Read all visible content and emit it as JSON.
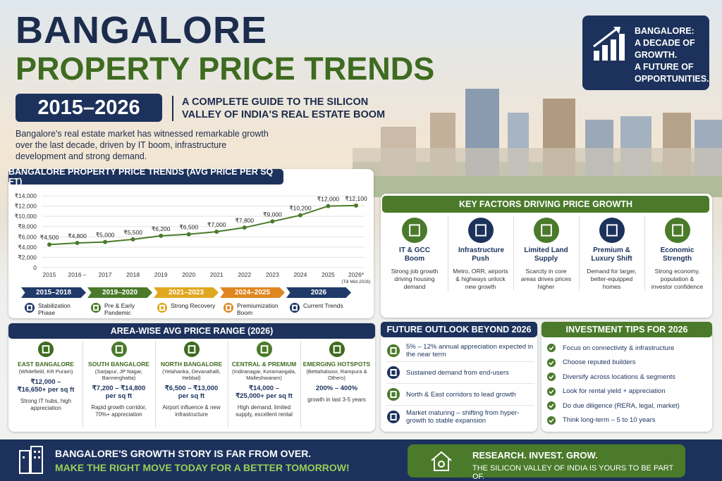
{
  "header": {
    "title_line1": "BANGALORE",
    "title_line2": "PROPERTY PRICE TRENDS",
    "years": "2015–2026",
    "subtitle_lines": [
      "A COMPLETE GUIDE TO THE SILICON",
      "VALLEY OF INDIA'S REAL ESTATE BOOM"
    ],
    "intro": "Bangalore's real estate market has witnessed remarkable growth over the last decade, driven by IT boom, infrastructure development and strong demand."
  },
  "badge": {
    "lines": [
      "BANGALORE:",
      "A DECADE OF GROWTH.",
      "A FUTURE OF",
      "OPPORTUNITIES."
    ]
  },
  "chart_data": {
    "type": "line",
    "title": "BANGALORE PROPERTY PRICE TRENDS (AVG PRICE PER SQ FT)",
    "categories": [
      "2015",
      "2016 –",
      "2017",
      "2018",
      "2019",
      "2020",
      "2021",
      "2022",
      "2023",
      "2024",
      "2025",
      "2026*"
    ],
    "x_note": "(Till Mid-2026)",
    "values": [
      4500,
      4800,
      5000,
      5500,
      6200,
      6500,
      7000,
      7800,
      9000,
      10200,
      12000,
      12100
    ],
    "value_labels": [
      "₹4,500",
      "₹4,800",
      "₹5,000",
      "₹5,500",
      "₹6,200",
      "₹6,500",
      "₹7,000",
      "₹7,800",
      "₹9,000",
      "₹10,200",
      "₹12,000",
      "₹12,100"
    ],
    "color": "#4a7a2a",
    "ylim": [
      0,
      14000
    ],
    "yticks": [
      0,
      {
        "value": 2000,
        "label": "₹2,000"
      },
      {
        "value": 4000,
        "label": "₹4,000"
      },
      {
        "value": 6000,
        "label": "₹6,000"
      },
      {
        "value": 8000,
        "label": "₹8,000"
      },
      {
        "value": 10000,
        "label": "₹10,000"
      },
      {
        "value": 12000,
        "label": "₹12,000"
      },
      {
        "value": 14000,
        "label": "₹14,000"
      }
    ],
    "grid": true
  },
  "phases": [
    {
      "range": "2015–2018",
      "label": "Stabilization Phase",
      "color": "#1f3a68"
    },
    {
      "range": "2019–2020",
      "label": "Pre & Early Pandemic",
      "color": "#4a7a2a"
    },
    {
      "range": "2021–2023",
      "label": "Strong Recovery",
      "color": "#e0a820"
    },
    {
      "range": "2024–2025",
      "label": "Premiumization Boom",
      "color": "#e0861f"
    },
    {
      "range": "2026",
      "label": "Current Trends",
      "color": "#1f3a68"
    }
  ],
  "key_factors": {
    "title": "KEY FACTORS DRIVING PRICE GROWTH",
    "items": [
      {
        "title": "IT & GCC Boom",
        "desc": "Strong job growth driving housing demand"
      },
      {
        "title": "Infrastructure Push",
        "desc": "Metro, ORR, airports & highways unlock new growth"
      },
      {
        "title": "Limited Land Supply",
        "desc": "Scarcity in core areas drives prices higher"
      },
      {
        "title": "Premium & Luxury Shift",
        "desc": "Demand for larger, better-equipped homes"
      },
      {
        "title": "Economic Strength",
        "desc": "Strong economy, population & investor confidence"
      }
    ]
  },
  "areas": {
    "title": "AREA-WISE AVG PRICE RANGE (2026)",
    "items": [
      {
        "name": "EAST BANGALORE",
        "sub": "(Whitefield, KR Puram)",
        "price": "₹12,000 – ₹16,650+ per sq ft",
        "note": "Strong IT hubs, high appreciation"
      },
      {
        "name": "SOUTH BANGALORE",
        "sub": "(Sarjapur, JP Nagar, Bannerghatta)",
        "price": "₹7,200 – ₹14,800 per sq ft",
        "note": "Rapid growth corridor, 70%+ appreciation"
      },
      {
        "name": "NORTH BANGALORE",
        "sub": "(Yelahanka, Devanahalli, Hebbal)",
        "price": "₹6,500 – ₹13,000 per sq ft",
        "note": "Airport influence & new infrastructure"
      },
      {
        "name": "CENTRAL & PREMIUM",
        "sub": "(Indiranagar, Koramangala, Malleshwaram)",
        "price": "₹14,000 – ₹25,000+ per sq ft",
        "note": "High demand, limited supply, excellent rental"
      },
      {
        "name": "EMERGING HOTSPOTS",
        "sub": "(Bettahalsoor, Rampura & Others)",
        "price": "200% – 400%",
        "note": "growth in last 3-5 years"
      }
    ]
  },
  "outlook": {
    "title": "FUTURE OUTLOOK BEYOND 2026",
    "items": [
      "5% – 12% annual appreciation expected in the near term",
      "Sustained demand from end-users",
      "North & East corridors to lead growth",
      "Market maturing – shifting from hyper-growth to stable expansion"
    ]
  },
  "tips": {
    "title": "INVESTMENT TIPS FOR 2026",
    "items": [
      "Focus on connectivity & infrastructure",
      "Choose reputed builders",
      "Diversify across locations & segments",
      "Look for rental yield + appreciation",
      "Do due diligence (RERA, legal, market)",
      "Think long-term – 5 to 10 years"
    ]
  },
  "footer": {
    "line1": "BANGALORE'S GROWTH STORY IS FAR FROM OVER.",
    "line2": "MAKE THE RIGHT MOVE TODAY FOR A BETTER TOMORROW!",
    "cta_title": "RESEARCH. INVEST. GROW.",
    "cta_sub": "THE SILICON VALLEY OF INDIA IS YOURS TO BE PART OF."
  }
}
